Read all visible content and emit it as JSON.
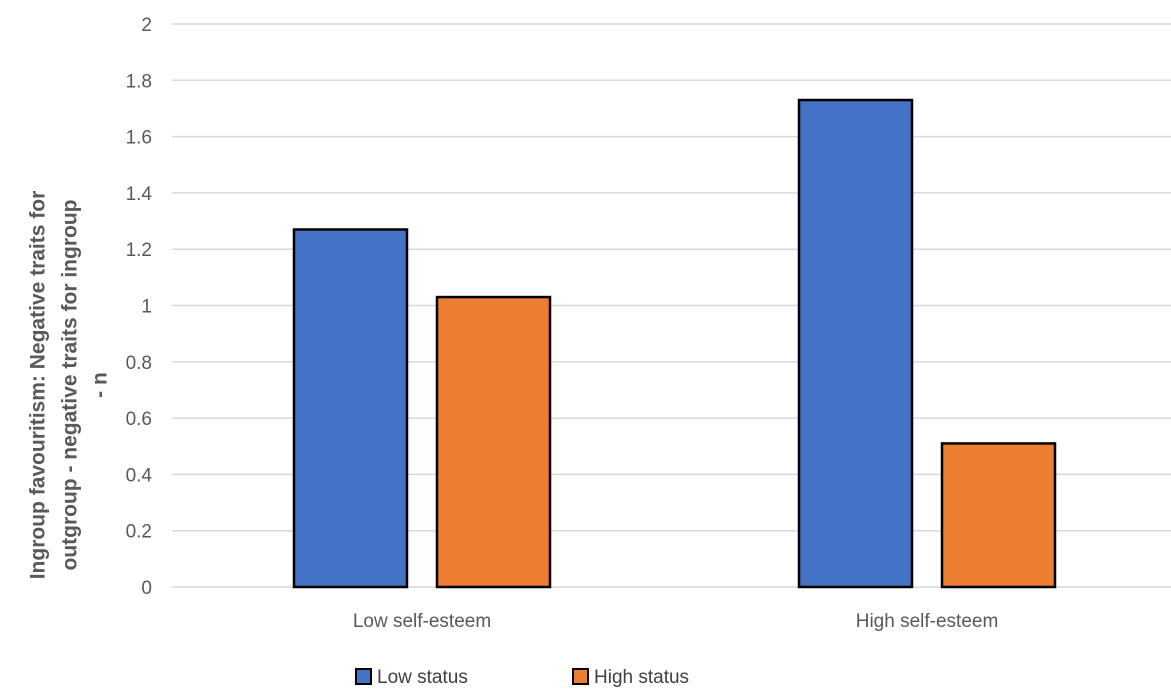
{
  "chart_data": {
    "type": "bar",
    "categories": [
      "Low self-esteem",
      "High self-esteem"
    ],
    "series": [
      {
        "name": "Low status",
        "values": [
          1.27,
          1.73
        ],
        "color": "#4472C4"
      },
      {
        "name": "High status",
        "values": [
          1.03,
          0.51
        ],
        "color": "#ED7D31"
      }
    ],
    "title": "",
    "xlabel": "",
    "ylabel_lines": [
      "Ingroup favouritism:  Negative traits for",
      "outgroup - negative traits for ingroup",
      "- n"
    ],
    "ylim": [
      0,
      2
    ],
    "yticks": [
      "0",
      "0.2",
      "0.4",
      "0.6",
      "0.8",
      "1",
      "1.2",
      "1.4",
      "1.6",
      "1.8",
      "2"
    ],
    "grid": true,
    "legend_position": "bottom",
    "colors": {
      "gridline": "#D9D9D9",
      "bar_stroke": "#000000",
      "text": "#595959"
    }
  }
}
